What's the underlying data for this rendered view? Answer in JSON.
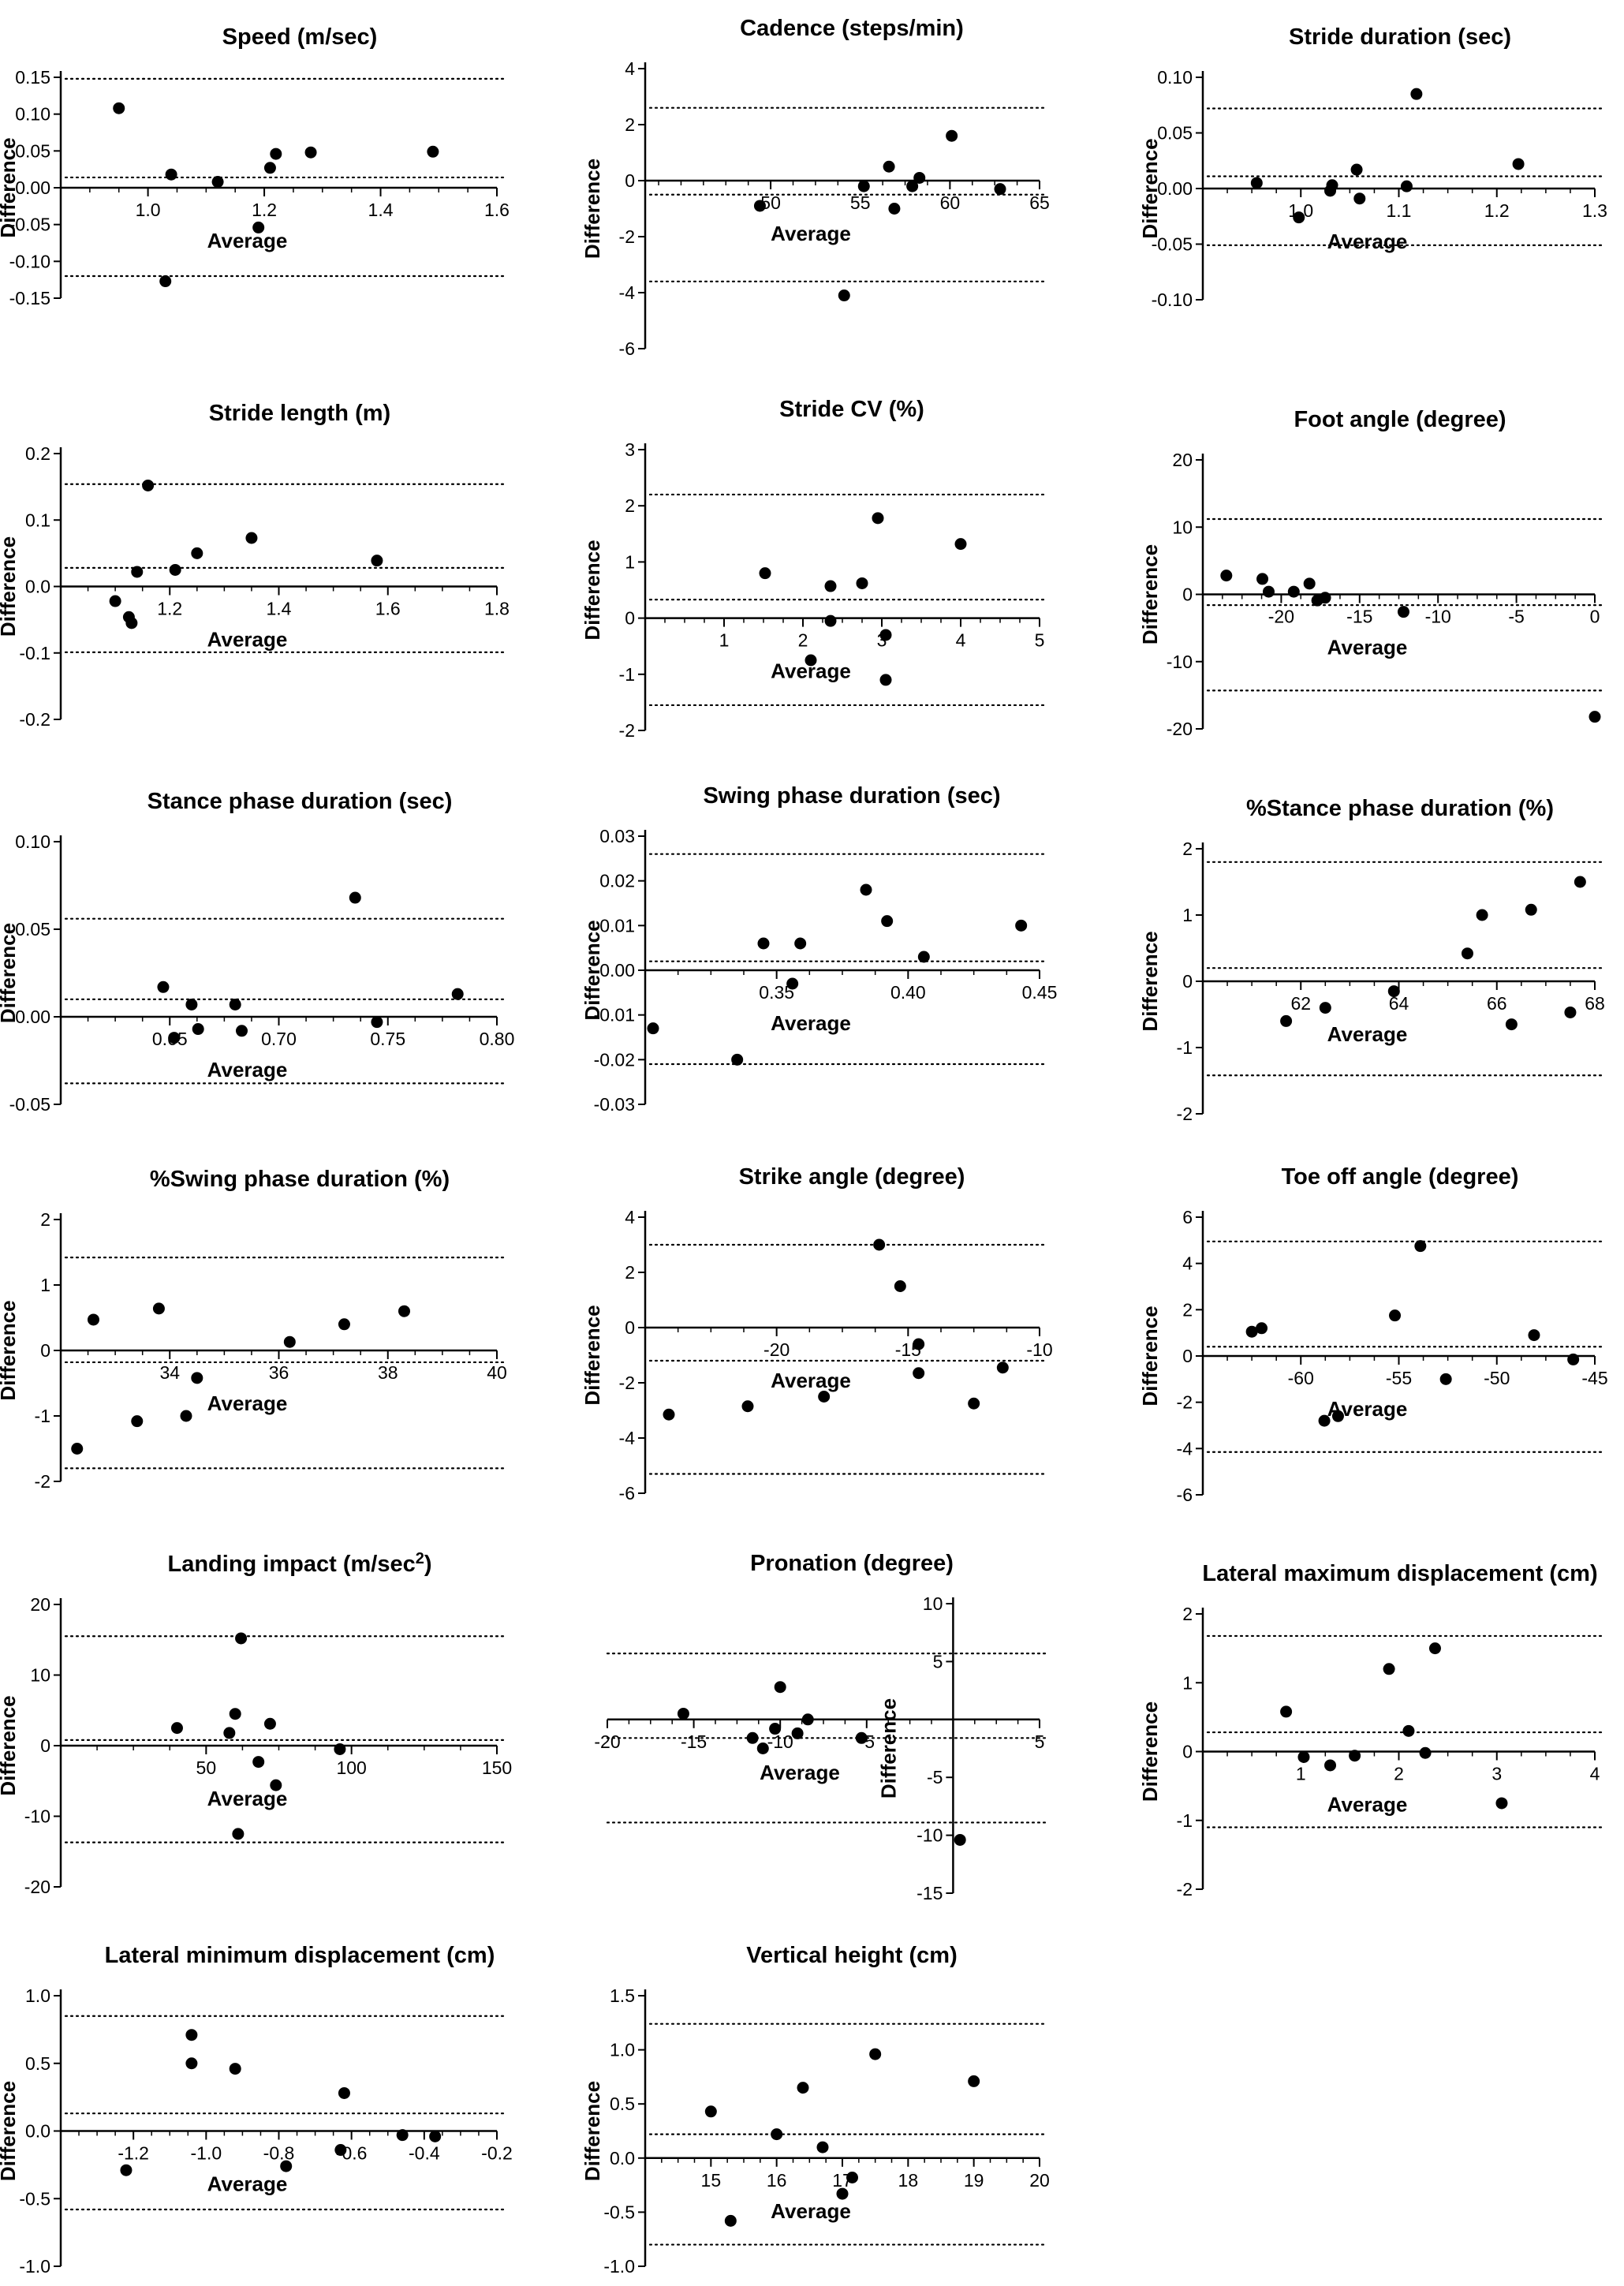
{
  "chart_data": [
    {
      "type": "scatter",
      "title": "Speed (m/sec)",
      "xlabel": "Average",
      "ylabel": "Difference",
      "xlim": [
        0.85,
        1.6
      ],
      "ylim": [
        -0.15,
        0.15
      ],
      "xticks": [
        1.0,
        1.2,
        1.4,
        1.6
      ],
      "xtick_labels": [
        "1.0",
        "1.2",
        "1.4",
        "1.6"
      ],
      "yticks": [
        -0.15,
        -0.1,
        -0.05,
        0.0,
        0.05,
        0.1,
        0.15
      ],
      "ytick_labels": [
        "-0.15",
        "-0.10",
        "-0.05",
        "0.00",
        "0.05",
        "0.10",
        "0.15"
      ],
      "reference_lines": [
        0.148,
        0.014,
        -0.12
      ],
      "x": [
        0.95,
        1.04,
        1.12,
        1.19,
        1.21,
        1.22,
        1.28,
        1.49,
        1.03
      ],
      "y": [
        0.108,
        0.018,
        0.008,
        -0.054,
        0.027,
        0.046,
        0.048,
        0.049,
        -0.127
      ]
    },
    {
      "type": "scatter",
      "title": "Cadence (steps/min)",
      "xlabel": "Average",
      "ylabel": "Difference",
      "xlim": [
        43,
        65
      ],
      "ylim": [
        -6,
        4
      ],
      "xticks": [
        50,
        55,
        60,
        65
      ],
      "xtick_labels": [
        "50",
        "55",
        "60",
        "65"
      ],
      "yticks": [
        -6,
        -4,
        -2,
        0,
        2,
        4
      ],
      "ytick_labels": [
        "-6",
        "-4",
        "-2",
        "0",
        "2",
        "4"
      ],
      "reference_lines": [
        2.6,
        -0.5,
        -3.6
      ],
      "x": [
        49.4,
        54.1,
        55.2,
        56.6,
        56.9,
        57.9,
        58.3,
        60.1,
        62.8
      ],
      "y": [
        -0.9,
        -4.1,
        -0.2,
        0.5,
        -1.0,
        -0.2,
        0.1,
        1.6,
        -0.3
      ]
    },
    {
      "type": "scatter",
      "title": "Stride duration (sec)",
      "xlabel": "Average",
      "ylabel": "Difference",
      "xlim": [
        0.9,
        1.3
      ],
      "ylim": [
        -0.1,
        0.1
      ],
      "xticks": [
        1.0,
        1.1,
        1.2,
        1.3
      ],
      "xtick_labels": [
        "1.0",
        "1.1",
        "1.2",
        "1.3"
      ],
      "yticks": [
        -0.1,
        -0.05,
        0.0,
        0.05,
        0.1
      ],
      "ytick_labels": [
        "-0.10",
        "-0.05",
        "0.00",
        "0.05",
        "0.10"
      ],
      "reference_lines": [
        0.072,
        0.011,
        -0.051
      ],
      "x": [
        0.955,
        0.998,
        1.032,
        1.03,
        1.057,
        1.06,
        1.108,
        1.118,
        1.222
      ],
      "y": [
        0.005,
        -0.026,
        0.003,
        -0.002,
        0.017,
        -0.009,
        0.002,
        0.085,
        0.022
      ]
    },
    {
      "type": "scatter",
      "title": "Stride length (m)",
      "xlabel": "Average",
      "ylabel": "Difference",
      "xlim": [
        1.0,
        1.8
      ],
      "ylim": [
        -0.2,
        0.2
      ],
      "xticks": [
        1.2,
        1.4,
        1.6,
        1.8
      ],
      "xtick_labels": [
        "1.2",
        "1.4",
        "1.6",
        "1.8"
      ],
      "yticks": [
        -0.2,
        -0.1,
        0.0,
        0.1,
        0.2
      ],
      "ytick_labels": [
        "-0.2",
        "-0.1",
        "0.0",
        "0.1",
        "0.2"
      ],
      "reference_lines": [
        0.154,
        0.028,
        -0.099
      ],
      "x": [
        1.1,
        1.125,
        1.13,
        1.14,
        1.16,
        1.21,
        1.25,
        1.35,
        1.58
      ],
      "y": [
        -0.022,
        -0.046,
        -0.055,
        0.022,
        0.152,
        0.025,
        0.05,
        0.073,
        0.039
      ]
    },
    {
      "type": "scatter",
      "title": "Stride CV (%)",
      "xlabel": "Average",
      "ylabel": "Difference",
      "xlim": [
        0,
        5
      ],
      "ylim": [
        -2,
        3
      ],
      "xticks": [
        1,
        2,
        3,
        4,
        5
      ],
      "xtick_labels": [
        "1",
        "2",
        "3",
        "4",
        "5"
      ],
      "yticks": [
        -2,
        -1,
        0,
        1,
        2,
        3
      ],
      "ytick_labels": [
        "-2",
        "-1",
        "0",
        "1",
        "2",
        "3"
      ],
      "reference_lines": [
        2.2,
        0.33,
        -1.55
      ],
      "x": [
        1.52,
        2.1,
        2.35,
        2.35,
        2.75,
        2.95,
        3.05,
        3.05,
        4.0
      ],
      "y": [
        0.8,
        -0.75,
        0.57,
        -0.05,
        0.62,
        1.78,
        -0.3,
        -1.1,
        1.32
      ]
    },
    {
      "type": "scatter",
      "title": "Foot angle (degree)",
      "xlabel": "Average",
      "ylabel": "Difference",
      "xlim": [
        -25,
        0
      ],
      "ylim": [
        -20,
        20
      ],
      "xticks": [
        -20,
        -15,
        -10,
        -5,
        0
      ],
      "xtick_labels": [
        "-20",
        "-15",
        "-10",
        "-5",
        "0"
      ],
      "yticks": [
        -20,
        -10,
        0,
        10,
        20
      ],
      "ytick_labels": [
        "-20",
        "-10",
        "0",
        "10",
        "20"
      ],
      "reference_lines": [
        11.2,
        -1.6,
        -14.3
      ],
      "x": [
        -23.5,
        -21.2,
        -20.8,
        -19.2,
        -18.2,
        -17.7,
        -17.2,
        -12.2,
        0.0
      ],
      "y": [
        2.8,
        2.3,
        0.4,
        0.4,
        1.6,
        -0.9,
        -0.5,
        -2.6,
        -18.2
      ]
    },
    {
      "type": "scatter",
      "title": "Stance phase duration (sec)",
      "xlabel": "Average",
      "ylabel": "Difference",
      "xlim": [
        0.6,
        0.8
      ],
      "ylim": [
        -0.05,
        0.1
      ],
      "xticks": [
        0.65,
        0.7,
        0.75,
        0.8
      ],
      "xtick_labels": [
        "0.65",
        "0.70",
        "0.75",
        "0.80"
      ],
      "yticks": [
        -0.05,
        0.0,
        0.05,
        0.1
      ],
      "ytick_labels": [
        "-0.05",
        "0.00",
        "0.05",
        "0.10"
      ],
      "reference_lines": [
        0.056,
        0.01,
        -0.038
      ],
      "x": [
        0.647,
        0.652,
        0.66,
        0.663,
        0.68,
        0.683,
        0.735,
        0.745,
        0.782
      ],
      "y": [
        0.017,
        -0.012,
        0.007,
        -0.007,
        0.007,
        -0.008,
        0.068,
        -0.003,
        0.013
      ]
    },
    {
      "type": "scatter",
      "title": "Swing phase duration (sec)",
      "xlabel": "Average",
      "ylabel": "Difference",
      "xlim": [
        0.3,
        0.45
      ],
      "ylim": [
        -0.03,
        0.03
      ],
      "xticks": [
        0.35,
        0.4,
        0.45
      ],
      "xtick_labels": [
        "0.35",
        "0.40",
        "0.45"
      ],
      "yticks": [
        -0.03,
        -0.02,
        -0.01,
        0.0,
        0.01,
        0.02,
        0.03
      ],
      "ytick_labels": [
        "-0.03",
        "-0.02",
        "-0.01",
        "0.00",
        "0.01",
        "0.02",
        "0.03"
      ],
      "reference_lines": [
        0.026,
        0.002,
        -0.021
      ],
      "x": [
        0.303,
        0.335,
        0.345,
        0.356,
        0.359,
        0.384,
        0.392,
        0.406,
        0.443
      ],
      "y": [
        -0.013,
        -0.02,
        0.006,
        -0.003,
        0.006,
        0.018,
        0.011,
        0.003,
        0.01
      ]
    },
    {
      "type": "scatter",
      "title": "%Stance phase duration (%)",
      "xlabel": "Average",
      "ylabel": "Difference",
      "xlim": [
        60,
        68
      ],
      "ylim": [
        -2,
        2
      ],
      "xticks": [
        62,
        64,
        66,
        68
      ],
      "xtick_labels": [
        "62",
        "64",
        "66",
        "68"
      ],
      "yticks": [
        -2,
        -1,
        0,
        1,
        2
      ],
      "ytick_labels": [
        "-2",
        "-1",
        "0",
        "1",
        "2"
      ],
      "reference_lines": [
        1.8,
        0.2,
        -1.42
      ],
      "x": [
        61.7,
        62.5,
        63.9,
        65.4,
        65.7,
        66.3,
        66.7,
        67.5,
        67.7
      ],
      "y": [
        -0.6,
        -0.4,
        -0.15,
        0.42,
        1.0,
        -0.65,
        1.08,
        -0.47,
        1.5
      ]
    },
    {
      "type": "scatter",
      "title": "%Swing phase duration (%)",
      "xlabel": "Average",
      "ylabel": "Difference",
      "xlim": [
        32,
        40
      ],
      "ylim": [
        -2,
        2
      ],
      "xticks": [
        34,
        36,
        38,
        40
      ],
      "xtick_labels": [
        "34",
        "36",
        "38",
        "40"
      ],
      "yticks": [
        -2,
        -1,
        0,
        1,
        2
      ],
      "ytick_labels": [
        "-2",
        "-1",
        "0",
        "1",
        "2"
      ],
      "reference_lines": [
        1.42,
        -0.18,
        -1.8
      ],
      "x": [
        32.3,
        32.6,
        33.4,
        33.8,
        34.3,
        34.5,
        36.2,
        37.2,
        38.3
      ],
      "y": [
        -1.5,
        0.47,
        -1.08,
        0.64,
        -1.0,
        -0.42,
        0.13,
        0.4,
        0.6
      ]
    },
    {
      "type": "scatter",
      "title": "Strike angle (degree)",
      "xlabel": "Average",
      "ylabel": "Difference",
      "xlim": [
        -25,
        -10
      ],
      "ylim": [
        -6,
        4
      ],
      "xticks": [
        -20,
        -15,
        -10
      ],
      "xtick_labels": [
        "-20",
        "-15",
        "-10"
      ],
      "yticks": [
        -6,
        -4,
        -2,
        0,
        2,
        4
      ],
      "ytick_labels": [
        "-6",
        "-4",
        "-2",
        "0",
        "2",
        "4"
      ],
      "reference_lines": [
        3.0,
        -1.2,
        -5.3
      ],
      "x": [
        -24.1,
        -21.1,
        -18.2,
        -16.1,
        -15.3,
        -14.6,
        -14.6,
        -12.5,
        -11.4
      ],
      "y": [
        -3.15,
        -2.85,
        -2.5,
        3.0,
        1.5,
        -0.6,
        -1.65,
        -2.75,
        -1.45
      ]
    },
    {
      "type": "scatter",
      "title": "Toe off angle (degree)",
      "xlabel": "Average",
      "ylabel": "Difference",
      "xlim": [
        -65,
        -45
      ],
      "ylim": [
        -6,
        6
      ],
      "xticks": [
        -60,
        -55,
        -50,
        -45
      ],
      "xtick_labels": [
        "-60",
        "-55",
        "-50",
        "-45"
      ],
      "yticks": [
        -6,
        -4,
        -2,
        0,
        2,
        4,
        6
      ],
      "ytick_labels": [
        "-6",
        "-4",
        "-2",
        "0",
        "2",
        "4",
        "6"
      ],
      "reference_lines": [
        4.95,
        0.4,
        -4.15
      ],
      "x": [
        -62.5,
        -62,
        -58.8,
        -58.1,
        -55.2,
        -53.9,
        -52.6,
        -48.1,
        -46.1
      ],
      "y": [
        1.05,
        1.2,
        -2.8,
        -2.6,
        1.75,
        4.75,
        -1.0,
        0.9,
        -0.15
      ]
    },
    {
      "type": "scatter",
      "title": "Landing impact (m/sec",
      "title_sup": "2",
      "title_end": ")",
      "xlabel": "Average",
      "ylabel": "Difference",
      "xlim": [
        0,
        150
      ],
      "ylim": [
        -20,
        20
      ],
      "xticks": [
        50,
        100,
        150
      ],
      "xtick_labels": [
        "50",
        "100",
        "150"
      ],
      "yticks": [
        -20,
        -10,
        0,
        10,
        20
      ],
      "ytick_labels": [
        "-20",
        "-10",
        "0",
        "10",
        "20"
      ],
      "reference_lines": [
        15.5,
        0.8,
        -13.7
      ],
      "x": [
        40,
        58,
        60,
        61,
        62,
        68,
        74,
        72,
        96
      ],
      "y": [
        2.5,
        1.8,
        4.5,
        -12.5,
        15.2,
        -2.3,
        -5.6,
        3.1,
        -0.5
      ]
    },
    {
      "type": "scatter",
      "title": "Pronation (degree)",
      "xlabel": "Average",
      "ylabel": "Difference",
      "xlim": [
        -20,
        5
      ],
      "ylim": [
        -15,
        10
      ],
      "xticks": [
        -20,
        -15,
        -10,
        -5,
        5
      ],
      "xtick_labels": [
        "-20",
        "-15",
        "-10",
        "-5",
        "5"
      ],
      "yticks": [
        -15,
        -10,
        -5,
        5,
        10
      ],
      "ytick_labels": [
        "-15",
        "-10",
        "-5",
        "5",
        "10"
      ],
      "reference_lines": [
        5.7,
        -1.6,
        -8.9
      ],
      "x": [
        -15.6,
        -11.6,
        -11.0,
        -10.3,
        -10.0,
        -9.0,
        -8.4,
        -5.3,
        0.4
      ],
      "y": [
        0.5,
        -1.6,
        -2.5,
        -0.8,
        2.8,
        -1.2,
        0.0,
        -1.6,
        -10.4
      ]
    },
    {
      "type": "scatter",
      "title": "Lateral maximum displacement (cm)",
      "xlabel": "Average",
      "ylabel": "Difference",
      "xlim": [
        0,
        4
      ],
      "ylim": [
        -2,
        2
      ],
      "xticks": [
        1,
        2,
        3,
        4
      ],
      "xtick_labels": [
        "1",
        "2",
        "3",
        "4"
      ],
      "yticks": [
        -2,
        -1,
        0,
        1,
        2
      ],
      "ytick_labels": [
        "-2",
        "-1",
        "0",
        "1",
        "2"
      ],
      "reference_lines": [
        1.68,
        0.28,
        -1.1
      ],
      "x": [
        0.85,
        1.03,
        1.3,
        1.55,
        1.9,
        2.1,
        2.27,
        2.37,
        3.05
      ],
      "y": [
        0.58,
        -0.08,
        -0.2,
        -0.06,
        1.2,
        0.3,
        -0.02,
        1.5,
        -0.75
      ]
    },
    {
      "type": "scatter",
      "title": "Lateral minimum displacement (cm)",
      "xlabel": "Average",
      "ylabel": "Difference",
      "xlim": [
        -1.4,
        -0.2
      ],
      "ylim": [
        -1,
        1
      ],
      "xticks": [
        -1.2,
        -1.0,
        -0.8,
        -0.6,
        -0.4,
        -0.2
      ],
      "xtick_labels": [
        "-1.2",
        "-1.0",
        "-0.8",
        "-0.6",
        "-0.4",
        "-0.2"
      ],
      "yticks": [
        -1.0,
        -0.5,
        0.0,
        0.5,
        1.0
      ],
      "ytick_labels": [
        "-1.0",
        "-0.5",
        "0.0",
        "0.5",
        "1.0"
      ],
      "reference_lines": [
        0.85,
        0.13,
        -0.58
      ],
      "x": [
        -1.22,
        -1.04,
        -1.04,
        -0.92,
        -0.78,
        -0.63,
        -0.62,
        -0.46,
        -0.37
      ],
      "y": [
        -0.29,
        0.71,
        0.5,
        0.46,
        -0.26,
        -0.14,
        0.28,
        -0.03,
        -0.04
      ]
    },
    {
      "type": "scatter",
      "title": "Vertical height (cm)",
      "xlabel": "Average",
      "ylabel": "Difference",
      "xlim": [
        14,
        20
      ],
      "ylim": [
        -1,
        1.5
      ],
      "xticks": [
        15,
        16,
        17,
        18,
        19,
        20
      ],
      "xtick_labels": [
        "15",
        "16",
        "17",
        "18",
        "19",
        "20"
      ],
      "yticks": [
        -1.0,
        -0.5,
        0.0,
        0.5,
        1.0,
        1.5
      ],
      "ytick_labels": [
        "-1.0",
        "-0.5",
        "0.0",
        "0.5",
        "1.0",
        "1.5"
      ],
      "reference_lines": [
        1.24,
        0.22,
        -0.8
      ],
      "x": [
        15.0,
        15.3,
        16.0,
        16.4,
        16.7,
        17.0,
        17.15,
        17.5,
        19.0
      ],
      "y": [
        0.43,
        -0.58,
        0.22,
        0.65,
        0.1,
        -0.33,
        -0.18,
        0.96,
        0.71
      ]
    }
  ]
}
